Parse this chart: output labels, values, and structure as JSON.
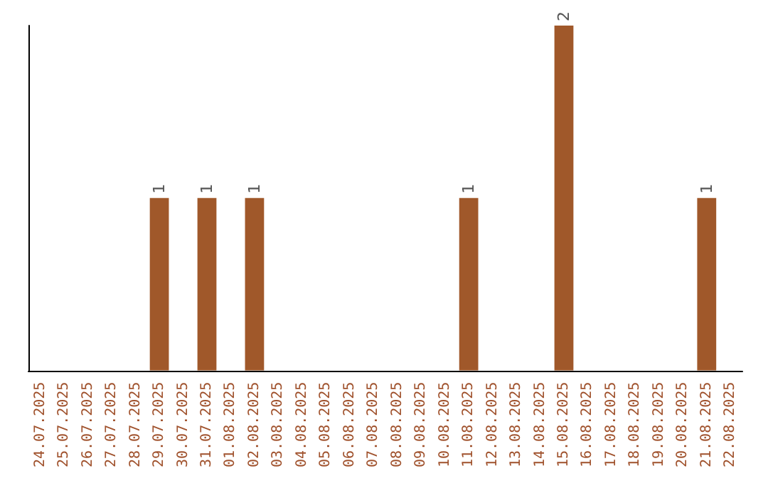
{
  "chart_data": {
    "type": "bar",
    "categories": [
      "24.07.2025",
      "25.07.2025",
      "26.07.2025",
      "27.07.2025",
      "28.07.2025",
      "29.07.2025",
      "30.07.2025",
      "31.07.2025",
      "01.08.2025",
      "02.08.2025",
      "03.08.2025",
      "04.08.2025",
      "05.08.2025",
      "06.08.2025",
      "07.08.2025",
      "08.08.2025",
      "09.08.2025",
      "10.08.2025",
      "11.08.2025",
      "12.08.2025",
      "13.08.2025",
      "14.08.2025",
      "15.08.2025",
      "16.08.2025",
      "17.08.2025",
      "18.08.2025",
      "19.08.2025",
      "20.08.2025",
      "21.08.2025",
      "22.08.2025"
    ],
    "values": [
      0,
      0,
      0,
      0,
      0,
      1,
      0,
      1,
      0,
      1,
      0,
      0,
      0,
      0,
      0,
      0,
      0,
      0,
      1,
      0,
      0,
      0,
      2,
      0,
      0,
      0,
      0,
      0,
      1,
      0
    ],
    "value_labels": [
      null,
      null,
      null,
      null,
      null,
      "1",
      null,
      "1",
      null,
      "1",
      null,
      null,
      null,
      null,
      null,
      null,
      null,
      null,
      "1",
      null,
      null,
      null,
      "2",
      null,
      null,
      null,
      null,
      null,
      "1",
      null
    ],
    "color": "#a0582a"
  }
}
